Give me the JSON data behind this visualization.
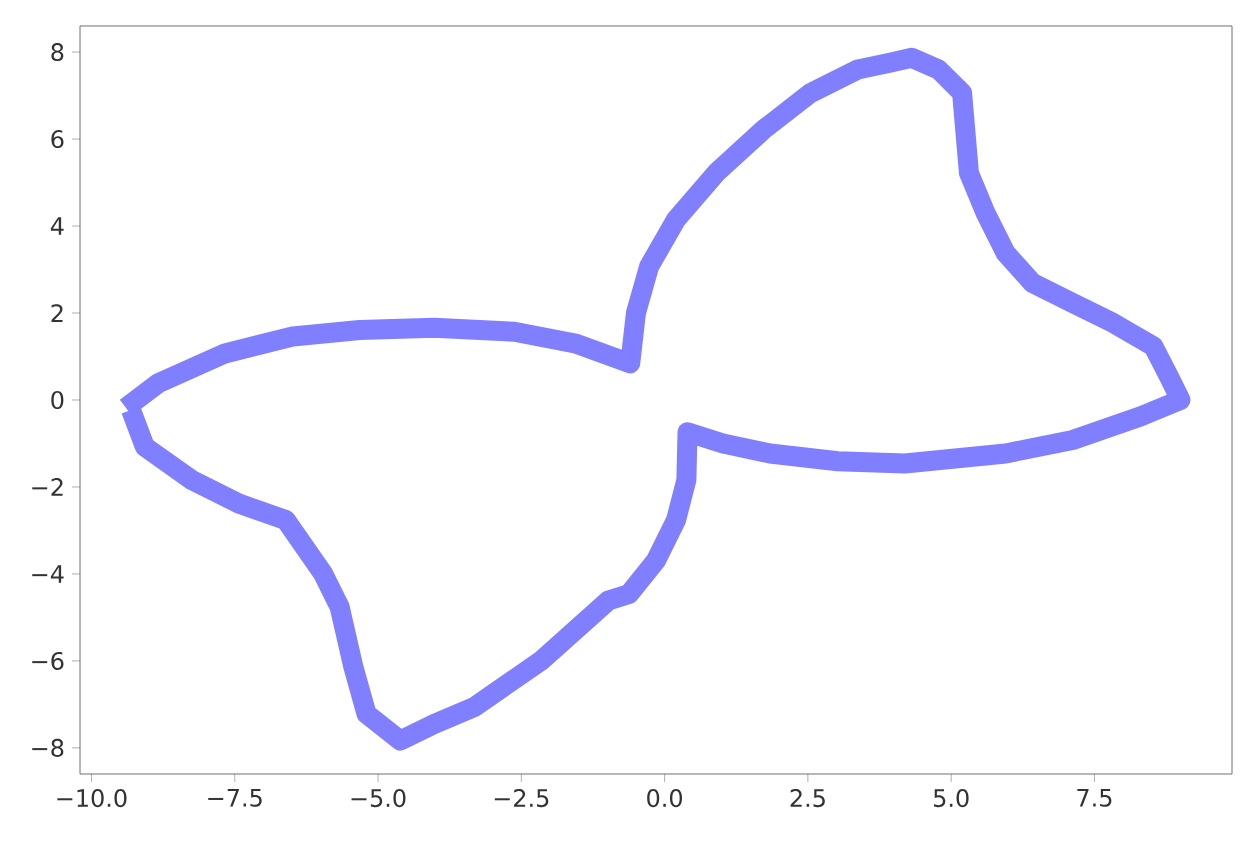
{
  "chart_data": {
    "type": "line",
    "xlim": [
      -10.2,
      9.9
    ],
    "ylim": [
      -8.6,
      8.6
    ],
    "xticks": [
      {
        "value": -10,
        "label": "−10.0"
      },
      {
        "value": -7.5,
        "label": "−7.5"
      },
      {
        "value": -5,
        "label": "−5.0"
      },
      {
        "value": -2.5,
        "label": "−2.5"
      },
      {
        "value": 0,
        "label": "0.0"
      },
      {
        "value": 2.5,
        "label": "2.5"
      },
      {
        "value": 5,
        "label": "5.0"
      },
      {
        "value": 7.5,
        "label": "7.5"
      }
    ],
    "yticks": [
      {
        "value": -8,
        "label": "−8"
      },
      {
        "value": -6,
        "label": "−6"
      },
      {
        "value": -4,
        "label": "−4"
      },
      {
        "value": -2,
        "label": "−2"
      },
      0,
      2,
      4,
      6,
      8
    ],
    "marker": "none",
    "line_style": "solid",
    "series": [
      {
        "color": "#7f7fff",
        "x": [
          -9.4,
          -8.84,
          -7.67,
          -6.49,
          -5.32,
          -4.02,
          -2.62,
          -1.56,
          -0.6,
          -0.5,
          -0.27,
          0.2,
          0.9,
          1.73,
          2.55,
          3.37,
          3.95,
          4.31,
          4.78,
          5.19,
          5.25,
          5.31,
          5.6,
          5.95,
          6.42,
          7.12,
          7.83,
          8.53,
          8.83,
          9.0,
          8.3,
          7.12,
          5.95,
          4.19,
          3.02,
          1.84,
          1.02,
          0.4,
          0.38,
          0.2,
          -0.15,
          -0.62,
          -0.98,
          -2.15,
          -3.32,
          -4.02,
          -4.61,
          -5.2,
          -5.43,
          -5.67,
          -5.96,
          -6.61,
          -7.43,
          -8.25,
          -9.07,
          -9.31
        ],
        "values": [
          -0.18,
          0.38,
          1.07,
          1.46,
          1.61,
          1.66,
          1.57,
          1.3,
          0.84,
          2.0,
          3.07,
          4.15,
          5.22,
          6.22,
          7.06,
          7.6,
          7.76,
          7.87,
          7.6,
          7.06,
          6.14,
          5.22,
          4.3,
          3.38,
          2.69,
          2.23,
          1.77,
          1.23,
          0.46,
          0.0,
          -0.38,
          -0.92,
          -1.23,
          -1.46,
          -1.41,
          -1.23,
          -1.0,
          -0.74,
          -1.84,
          -2.76,
          -3.69,
          -4.46,
          -4.61,
          -5.99,
          -7.06,
          -7.45,
          -7.83,
          -7.22,
          -6.14,
          -4.76,
          -3.99,
          -2.76,
          -2.38,
          -1.84,
          -1.07,
          -0.23
        ]
      }
    ]
  }
}
